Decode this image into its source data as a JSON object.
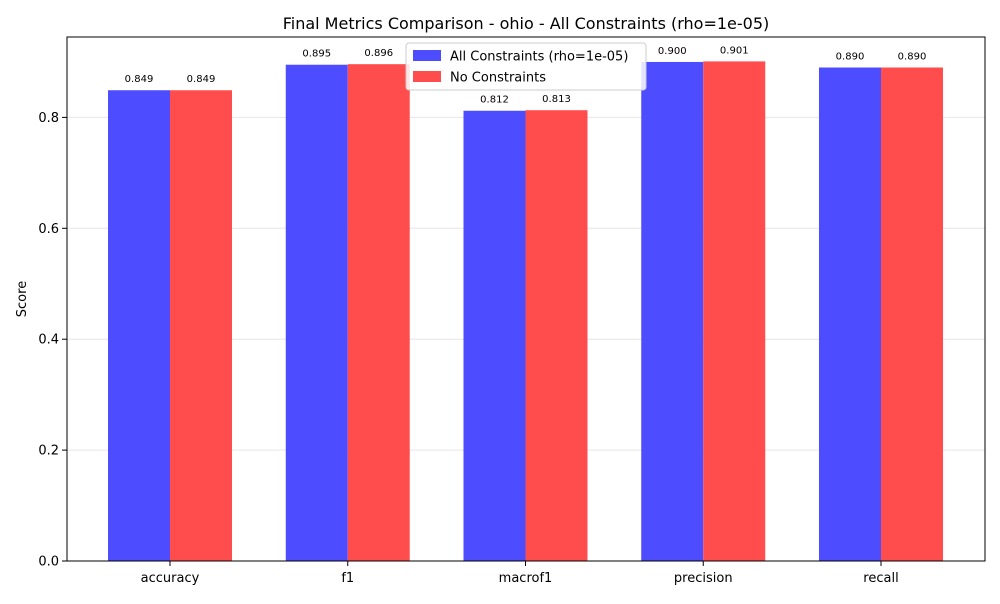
{
  "chart_data": {
    "type": "bar",
    "title": "Final Metrics Comparison - ohio - All Constraints (rho=1e-05)",
    "xlabel": "",
    "ylabel": "Score",
    "categories": [
      "accuracy",
      "f1",
      "macrof1",
      "precision",
      "recall"
    ],
    "series": [
      {
        "name": "All Constraints (rho=1e-05)",
        "color": "#4d4dff",
        "values": [
          0.849,
          0.895,
          0.812,
          0.9,
          0.89
        ],
        "labels": [
          "0.849",
          "0.895",
          "0.812",
          "0.900",
          "0.890"
        ]
      },
      {
        "name": "No Constraints",
        "color": "#ff4d4d",
        "values": [
          0.849,
          0.896,
          0.813,
          0.901,
          0.89
        ],
        "labels": [
          "0.849",
          "0.896",
          "0.813",
          "0.901",
          "0.890"
        ]
      }
    ],
    "ylim": [
      0,
      0.945
    ],
    "yticks": [
      0.0,
      0.2,
      0.4,
      0.6,
      0.8
    ],
    "ytick_labels": [
      "0.0",
      "0.2",
      "0.4",
      "0.6",
      "0.8"
    ],
    "grid": "y",
    "legend_position": "top-center"
  }
}
